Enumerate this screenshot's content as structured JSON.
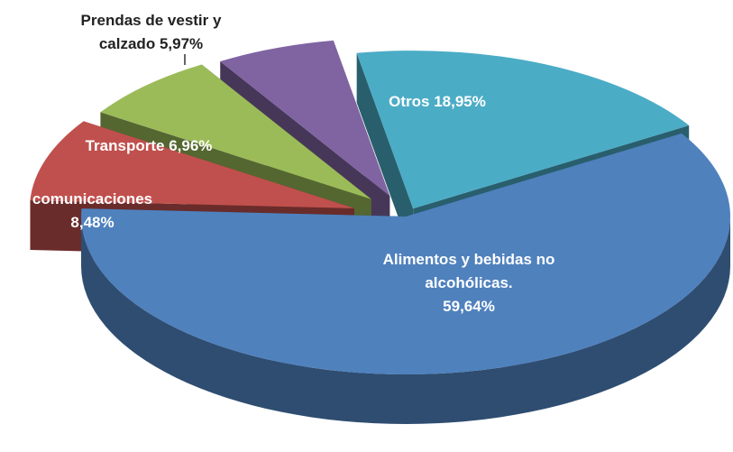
{
  "chart_data": {
    "type": "pie",
    "categories": [
      "Otros",
      "Alimentos y bebidas no alcohólicas.",
      "comunicaciones",
      "Transporte",
      "Prendas de vestir y calzado"
    ],
    "values": [
      18.95,
      59.64,
      8.48,
      6.96,
      5.97
    ],
    "value_labels": [
      "18,95%",
      "59,64%",
      "8,48%",
      "6,96%",
      "5,97%"
    ],
    "colors": [
      "#4bacc6",
      "#4f81bd",
      "#c0504d",
      "#9bbb59",
      "#8064a2"
    ]
  }
}
